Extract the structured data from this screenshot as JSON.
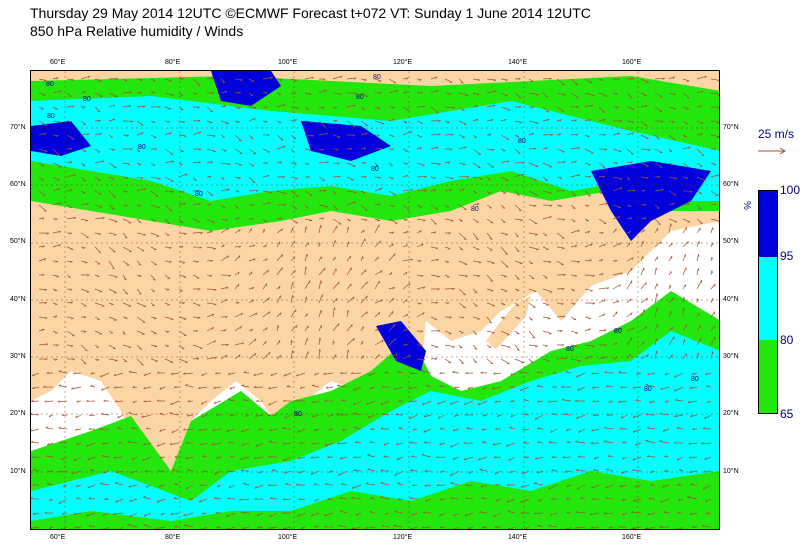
{
  "header": {
    "title_line1": "Thursday 29 May 2014 12UTC ©ECMWF Forecast t+072 VT: Sunday 1 June 2014 12UTC",
    "title_line2": "850 hPa Relative humidity / Winds"
  },
  "map": {
    "lon_labels": [
      "60°E",
      "80°E",
      "100°E",
      "120°E",
      "140°E",
      "160°E"
    ],
    "lat_labels": [
      "70°N",
      "60°N",
      "50°N",
      "40°N",
      "30°N",
      "20°N",
      "10°N"
    ],
    "contour_labels": [
      "80",
      "80",
      "80",
      "80",
      "80",
      "80",
      "80",
      "80",
      "80",
      "80",
      "80",
      "80",
      "80",
      "80",
      "80"
    ],
    "colors": {
      "land": "#fcd5a5",
      "ocean_dry": "#ffffff",
      "rh_65_80": "#22e60c",
      "rh_80_95": "#00ffff",
      "rh_95_100": "#0000dc",
      "coast": "#7a2a00",
      "wind_arrow": "#a05030",
      "contour_text": "#000080"
    }
  },
  "legend": {
    "reference_wind": "25 m/s",
    "unit": "%",
    "ticks": [
      "100",
      "95",
      "80",
      "65"
    ],
    "segments": [
      {
        "from": 95,
        "to": 100,
        "color": "#0000dc"
      },
      {
        "from": 80,
        "to": 95,
        "color": "#00ffff"
      },
      {
        "from": 65,
        "to": 80,
        "color": "#22e60c"
      }
    ]
  }
}
